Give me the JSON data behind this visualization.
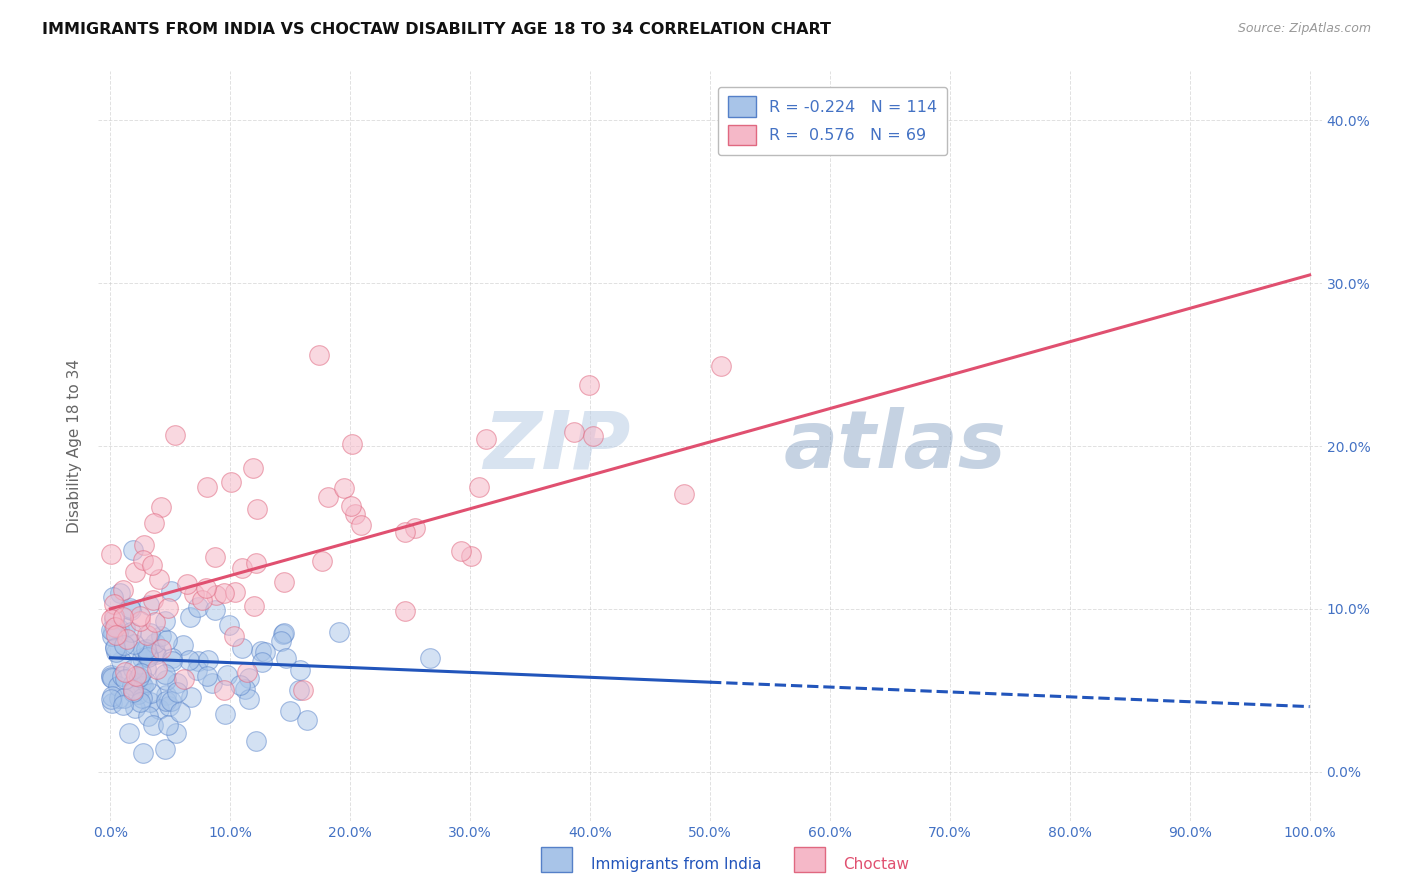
{
  "title": "IMMIGRANTS FROM INDIA VS CHOCTAW DISABILITY AGE 18 TO 34 CORRELATION CHART",
  "source": "Source: ZipAtlas.com",
  "ylabel": "Disability Age 18 to 34",
  "watermark_zip": "ZIP",
  "watermark_atlas": "atlas",
  "blue_R": -0.224,
  "blue_N": 114,
  "pink_R": 0.576,
  "pink_N": 69,
  "blue_fill": "#a8c4e8",
  "pink_fill": "#f5b8c8",
  "blue_edge": "#5580c8",
  "pink_edge": "#e06880",
  "blue_label": "Immigrants from India",
  "pink_label": "Choctaw",
  "blue_line_color": "#2255bb",
  "pink_line_color": "#e05070",
  "xticks": [
    0,
    10,
    20,
    30,
    40,
    50,
    60,
    70,
    80,
    90,
    100
  ],
  "yticks": [
    0,
    10,
    20,
    30,
    40
  ],
  "background_color": "#ffffff",
  "grid_color": "#cccccc",
  "title_color": "#111111",
  "tick_color": "#4472c4",
  "legend_text_color": "#4472c4",
  "blue_line_intercept": 7.0,
  "blue_line_slope": -0.03,
  "pink_line_intercept": 10.0,
  "pink_line_slope": 0.205
}
